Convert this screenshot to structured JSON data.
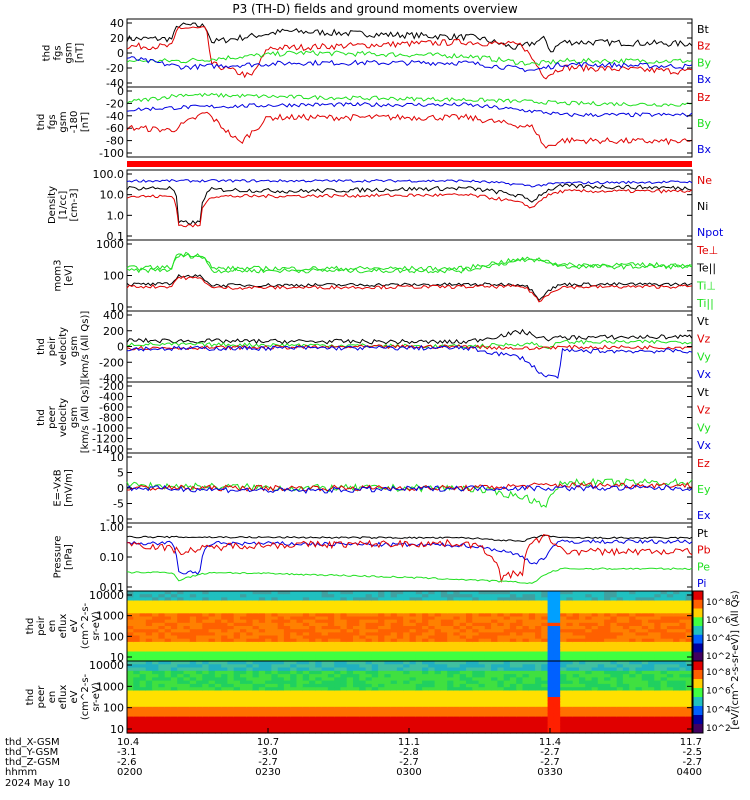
{
  "title": "P3 (TH-D) fields and ground moments overview",
  "colors": {
    "black": "#000000",
    "red": "#e00000",
    "green": "#20e020",
    "blue": "#0000e0"
  },
  "panels": [
    {
      "id": "fgs",
      "ylabel": [
        "thd",
        "fgs",
        "gsm",
        "[nT]"
      ],
      "ticks": [
        "40",
        "20",
        "0",
        "-20",
        "-40"
      ],
      "ylim": [
        -40,
        55
      ],
      "log": false,
      "legend": [
        {
          "label": "Bt",
          "color": "#000000"
        },
        {
          "label": "Bz",
          "color": "#e00000"
        },
        {
          "label": "By",
          "color": "#20e020"
        },
        {
          "label": "Bx",
          "color": "#0000e0"
        }
      ]
    },
    {
      "id": "fgs_theta",
      "ylabel": [
        "thd",
        "fgs",
        "gsm",
        "-180",
        "[nT]"
      ],
      "ticks": [
        "0",
        "-20",
        "-40",
        "-60",
        "-80",
        "-100"
      ],
      "ylim": [
        -110,
        12
      ],
      "log": false,
      "legend": [
        {
          "label": "Bz",
          "color": "#e00000"
        },
        {
          "label": "By",
          "color": "#20e020"
        },
        {
          "label": "Bx",
          "color": "#0000e0"
        }
      ]
    },
    {
      "id": "density",
      "ylabel": [
        "Density",
        "[1/cc]",
        "[cm-3]"
      ],
      "ticks": [
        "100.0",
        "10.0",
        "1.0",
        "0.1"
      ],
      "ylim": [
        0.05,
        200
      ],
      "log": true,
      "legend": [
        {
          "label": "Ne",
          "color": "#e00000"
        },
        {
          "label": "Ni",
          "color": "#000000"
        },
        {
          "label": "Npot",
          "color": "#0000e0"
        }
      ]
    },
    {
      "id": "temp",
      "ylabel": [
        "mom3",
        "[eV]"
      ],
      "ticks": [
        "1000",
        "100",
        "10"
      ],
      "ylim": [
        5,
        3000
      ],
      "log": true,
      "legend": [
        {
          "label": "Te⊥",
          "color": "#e00000"
        },
        {
          "label": "Te||",
          "color": "#000000"
        },
        {
          "label": "Ti⊥",
          "color": "#20e020"
        },
        {
          "label": "Ti||",
          "color": "#20e020"
        }
      ]
    },
    {
      "id": "ion_vel",
      "ylabel": [
        "thd",
        "peir",
        "velocity",
        "gsm",
        "[km/s (All Qs)]"
      ],
      "ticks": [
        "400",
        "200",
        "0",
        "-200",
        "-400"
      ],
      "ylim": [
        -420,
        420
      ],
      "log": false,
      "legend": [
        {
          "label": "Vt",
          "color": "#000000"
        },
        {
          "label": "Vz",
          "color": "#e00000"
        },
        {
          "label": "Vy",
          "color": "#20e020"
        },
        {
          "label": "Vx",
          "color": "#0000e0"
        }
      ]
    },
    {
      "id": "elec_vel",
      "ylabel": [
        "thd",
        "peer",
        "velocity",
        "gsm",
        "[km/s (All Qs)]"
      ],
      "ticks": [
        "-200",
        "-400",
        "-600",
        "-800",
        "-1000",
        "-1200",
        "-1400"
      ],
      "ylim": [
        -1500,
        -150
      ],
      "log": false,
      "legend": [
        {
          "label": "Vt",
          "color": "#000000"
        },
        {
          "label": "Vz",
          "color": "#e00000"
        },
        {
          "label": "Vy",
          "color": "#20e020"
        },
        {
          "label": "Vx",
          "color": "#0000e0"
        }
      ]
    },
    {
      "id": "efield",
      "ylabel": [
        "E=-VxB",
        "[mV/m]"
      ],
      "ticks": [
        "10",
        "5",
        "0",
        "-5",
        "-10"
      ],
      "ylim": [
        -11,
        11
      ],
      "log": false,
      "legend": [
        {
          "label": "Ez",
          "color": "#e00000"
        },
        {
          "label": "Ey",
          "color": "#20e020"
        },
        {
          "label": "Ex",
          "color": "#0000e0"
        }
      ]
    },
    {
      "id": "pressure",
      "ylabel": [
        "Pressure",
        "[nPa]"
      ],
      "ticks": [
        "1.00",
        "0.10",
        "0.01"
      ],
      "ylim": [
        0.004,
        3
      ],
      "log": true,
      "legend": [
        {
          "label": "Pt",
          "color": "#000000"
        },
        {
          "label": "Pb",
          "color": "#e00000"
        },
        {
          "label": "Pe",
          "color": "#20e020"
        },
        {
          "label": "Pi",
          "color": "#0000e0"
        }
      ]
    },
    {
      "id": "ion_spec",
      "ylabel": [
        "thd",
        "peir",
        "en",
        "eflux",
        "eV",
        "(cm^2-s-",
        "sr-eV)"
      ],
      "ticks": [
        "10000",
        "1000",
        "100",
        "10"
      ],
      "ylim": [
        5,
        20000
      ],
      "log": true,
      "legend": []
    },
    {
      "id": "elec_spec",
      "ylabel": [
        "thd",
        "peer",
        "en",
        "eflux",
        "eV",
        "(cm^2-s-",
        "sr-eV)"
      ],
      "ticks": [
        "10000",
        "1000",
        "100",
        "10"
      ],
      "ylim": [
        5,
        20000
      ],
      "log": true,
      "legend": []
    }
  ],
  "colorbar": {
    "label": "[eV/(cm^2-s-sr-eV)] (All Qs)",
    "ticks_upper": [
      "10^8",
      "10^6",
      "10^4",
      "10^2"
    ],
    "ticks_lower": [
      "10^8",
      "10^6",
      "10^4",
      "10^2"
    ]
  },
  "x_axis": {
    "rows": [
      {
        "label": "thd_X-GSM",
        "values": [
          "10.4",
          "10.7",
          "11.1",
          "11.4",
          "11.7"
        ]
      },
      {
        "label": "thd_Y-GSM",
        "values": [
          "-3.1",
          "-3.0",
          "-2.8",
          "-2.7",
          "-2.5"
        ]
      },
      {
        "label": "thd_Z-GSM",
        "values": [
          "-2.6",
          "-2.7",
          "-2.7",
          "-2.7",
          "-2.7"
        ]
      },
      {
        "label": "hhmm",
        "values": [
          "0200",
          "0230",
          "0300",
          "0330",
          "0400"
        ]
      }
    ],
    "date": "2024 May 10"
  },
  "chart_data": [
    {
      "type": "line",
      "title": "P3 (TH-D) fields and ground moments overview",
      "ylabel": "thd fgs gsm [nT]",
      "ylim": [
        -40,
        55
      ],
      "x": [
        "0200",
        "0230",
        "0300",
        "0330",
        "0400"
      ],
      "series": [
        {
          "name": "Bt",
          "values": [
            32,
            36,
            38,
            32,
            22
          ]
        },
        {
          "name": "Bz",
          "values": [
            18,
            20,
            28,
            22,
            -22
          ]
        },
        {
          "name": "By",
          "values": [
            -5,
            8,
            4,
            -8,
            -5
          ]
        },
        {
          "name": "Bx",
          "values": [
            0,
            -12,
            -8,
            -10,
            -15
          ]
        }
      ]
    },
    {
      "type": "line",
      "ylabel": "thd fgs gsm -180 [nT]",
      "ylim": [
        -110,
        12
      ],
      "x": [
        "0200",
        "0230",
        "0300",
        "0330",
        "0400"
      ],
      "series": [
        {
          "name": "Bz",
          "values": [
            -60,
            -35,
            -40,
            -45,
            -85
          ]
        },
        {
          "name": "By",
          "values": [
            -10,
            0,
            -5,
            -10,
            -15
          ]
        },
        {
          "name": "Bx",
          "values": [
            -25,
            -15,
            -15,
            -25,
            -35
          ]
        }
      ]
    },
    {
      "type": "line",
      "ylabel": "Density [1/cc] [cm-3]",
      "ylim": [
        0.05,
        200
      ],
      "log": true,
      "x": [
        "0200",
        "0230",
        "0300",
        "0330",
        "0400"
      ],
      "series": [
        {
          "name": "Ne",
          "values": [
            10,
            10,
            12,
            20,
            20
          ]
        },
        {
          "name": "Ni",
          "values": [
            30,
            25,
            30,
            40,
            30
          ]
        },
        {
          "name": "Npot",
          "values": [
            80,
            80,
            80,
            50,
            70
          ]
        }
      ]
    },
    {
      "type": "line",
      "ylabel": "mom3 [eV]",
      "ylim": [
        5,
        3000
      ],
      "log": true,
      "x": [
        "0200",
        "0230",
        "0300",
        "0330",
        "0400"
      ],
      "series": [
        {
          "name": "Te⊥",
          "values": [
            40,
            40,
            40,
            8,
            40
          ]
        },
        {
          "name": "Te||",
          "values": [
            50,
            50,
            50,
            10,
            50
          ]
        },
        {
          "name": "Ti⊥",
          "values": [
            200,
            200,
            150,
            300,
            300
          ]
        },
        {
          "name": "Ti||",
          "values": [
            250,
            250,
            200,
            350,
            350
          ]
        }
      ]
    },
    {
      "type": "line",
      "ylabel": "thd peir velocity gsm [km/s (All Qs)]",
      "ylim": [
        -420,
        420
      ],
      "x": [
        "0200",
        "0230",
        "0300",
        "0330",
        "0400"
      ],
      "series": [
        {
          "name": "Vt",
          "values": [
            80,
            60,
            60,
            120,
            130
          ]
        },
        {
          "name": "Vz",
          "values": [
            -20,
            -10,
            0,
            -10,
            -10
          ]
        },
        {
          "name": "Vy",
          "values": [
            30,
            20,
            0,
            20,
            60
          ]
        },
        {
          "name": "Vx",
          "values": [
            -30,
            -20,
            -20,
            -400,
            -60
          ]
        }
      ]
    },
    {
      "type": "line",
      "ylabel": "E=-VxB [mV/m]",
      "ylim": [
        -11,
        11
      ],
      "x": [
        "0200",
        "0230",
        "0300",
        "0330",
        "0400"
      ],
      "series": [
        {
          "name": "Ez",
          "values": [
            0,
            0,
            0,
            1,
            1
          ]
        },
        {
          "name": "Ey",
          "values": [
            1,
            0,
            0,
            -6,
            2
          ]
        },
        {
          "name": "Ex",
          "values": [
            0,
            -1,
            0,
            0,
            0
          ]
        }
      ]
    },
    {
      "type": "line",
      "ylabel": "Pressure [nPa]",
      "ylim": [
        0.004,
        3
      ],
      "log": true,
      "x": [
        "0200",
        "0230",
        "0300",
        "0330",
        "0400"
      ],
      "series": [
        {
          "name": "Pt",
          "values": [
            1.0,
            0.9,
            0.9,
            1.2,
            0.9
          ]
        },
        {
          "name": "Pb",
          "values": [
            0.5,
            0.4,
            0.5,
            1.0,
            0.2
          ]
        },
        {
          "name": "Pe",
          "values": [
            0.02,
            0.02,
            0.02,
            0.006,
            0.03
          ]
        },
        {
          "name": "Pi",
          "values": [
            0.5,
            0.5,
            0.4,
            0.1,
            0.6
          ]
        }
      ]
    }
  ]
}
